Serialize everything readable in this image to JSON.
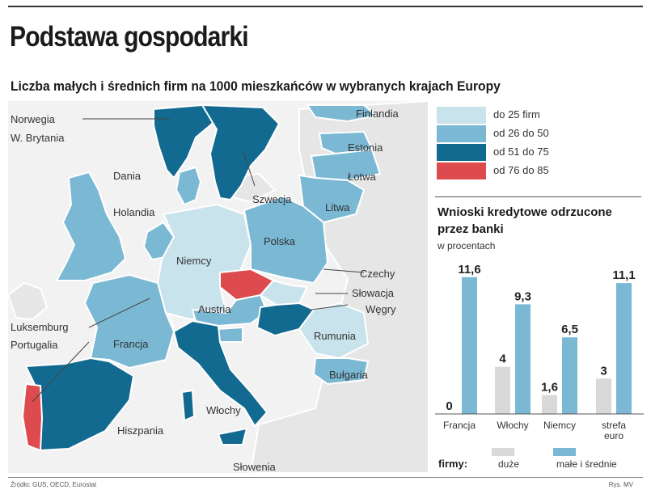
{
  "title": "Podstawa gospodarki",
  "subtitle": "Liczba małych i średnich firm na 1000 mieszkańców w wybranych krajach Europy",
  "legend": [
    {
      "label": "do 25 firm",
      "color": "#c9e3ec"
    },
    {
      "label": "od 26 do 50",
      "color": "#7ab8d4"
    },
    {
      "label": "od 51 do 75",
      "color": "#126a90"
    },
    {
      "label": "od 76 do 85",
      "color": "#de4b4e"
    }
  ],
  "map": {
    "colors": {
      "water": "#ffffff",
      "land_other": "#e6e6e6",
      "border": "#ffffff"
    },
    "countries": [
      {
        "name": "Norwegia",
        "category": 2
      },
      {
        "name": "W. Brytania",
        "category": 1
      },
      {
        "name": "Dania",
        "category": 1
      },
      {
        "name": "Szwecja",
        "category": 2
      },
      {
        "name": "Finlandia",
        "category": 1
      },
      {
        "name": "Estonia",
        "category": 1
      },
      {
        "name": "Łotwa",
        "category": 1
      },
      {
        "name": "Litwa",
        "category": 1
      },
      {
        "name": "Holandia",
        "category": 1
      },
      {
        "name": "Niemcy",
        "category": 0
      },
      {
        "name": "Polska",
        "category": 1
      },
      {
        "name": "Czechy",
        "category": 3
      },
      {
        "name": "Słowacja",
        "category": 0
      },
      {
        "name": "Węgry",
        "category": 2
      },
      {
        "name": "Austria",
        "category": 1
      },
      {
        "name": "Rumunia",
        "category": 0
      },
      {
        "name": "Bułgaria",
        "category": 1
      },
      {
        "name": "Luksemburg",
        "category": 1
      },
      {
        "name": "Portugalia",
        "category": 3
      },
      {
        "name": "Francja",
        "category": 1
      },
      {
        "name": "Hiszpania",
        "category": 2
      },
      {
        "name": "Włochy",
        "category": 2
      },
      {
        "name": "Słowenia",
        "category": 1
      }
    ],
    "labels": {
      "norwegia": "Norwegia",
      "wbrytania": "W. Brytania",
      "dania": "Dania",
      "holandia": "Holandia",
      "finlandia": "Finlandia",
      "estonia": "Estonia",
      "lotwa": "Łotwa",
      "szwecja": "Szwecja",
      "litwa": "Litwa",
      "polska": "Polska",
      "niemcy": "Niemcy",
      "czechy": "Czechy",
      "slowacja": "Słowacja",
      "wegry": "Węgry",
      "austria": "Austria",
      "rumunia": "Rumunia",
      "bulgaria": "Bułgaria",
      "luksemburg": "Luksemburg",
      "portugalia": "Portugalia",
      "francja": "Francja",
      "hiszpania": "Hiszpania",
      "wlochy": "Włochy",
      "slowenia": "Słowenia"
    }
  },
  "chart_data": {
    "type": "bar",
    "title": "Wnioski kredytowe odrzucone przez banki",
    "unit": "w procentach",
    "categories": [
      "Francja",
      "Włochy",
      "Niemcy",
      "strefa euro"
    ],
    "value_labels": [
      [
        "0",
        "11,6"
      ],
      [
        "4",
        "9,3"
      ],
      [
        "1,6",
        "6,5"
      ],
      [
        "3",
        "11,1"
      ]
    ],
    "series": [
      {
        "name": "duże",
        "color": "#d9d9d9",
        "values": [
          0,
          4,
          1.6,
          3
        ]
      },
      {
        "name": "małe i średnie",
        "color": "#7ab8d4",
        "values": [
          11.6,
          9.3,
          6.5,
          11.1
        ]
      }
    ],
    "ylim": [
      0,
      12
    ],
    "legend_title": "firmy:",
    "grid": false
  },
  "source": "Źródło: GUS, OECD, Eurostat",
  "credit": "Rys. MV"
}
